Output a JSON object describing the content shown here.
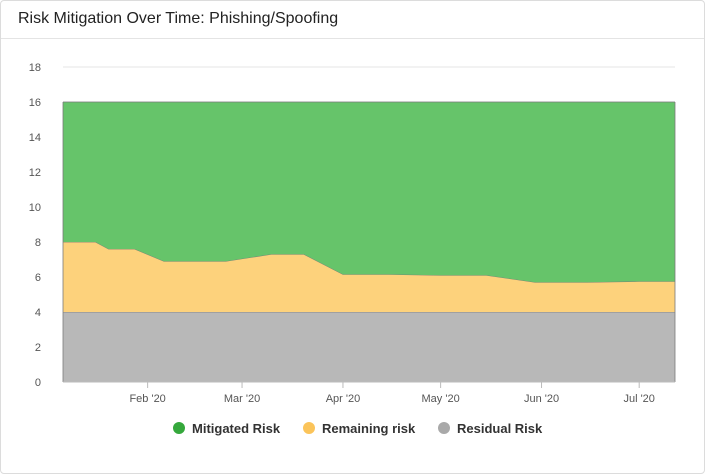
{
  "title": "Risk Mitigation Over Time: Phishing/Spoofing",
  "colors": {
    "mitigated": "#66c46a",
    "remaining": "#fdd27c",
    "residual": "#b8b8b8",
    "mitigated_legend": "#35a83c",
    "remaining_legend": "#fbc45a",
    "residual_legend": "#a9a9a9"
  },
  "chart_data": {
    "type": "area",
    "stacked": true,
    "grid": true,
    "legend_position": "bottom",
    "y_ticks": [
      "0",
      "2",
      "4",
      "6",
      "8",
      "10",
      "12",
      "14",
      "16",
      "18"
    ],
    "ylim": [
      0,
      18
    ],
    "x_tick_labels": [
      "Feb '20",
      "Mar '20",
      "Apr '20",
      "May '20",
      "Jun '20",
      "Jul '20"
    ],
    "x_tick_dates": [
      "2020-02-01",
      "2020-03-01",
      "2020-04-01",
      "2020-05-01",
      "2020-06-01",
      "2020-07-01"
    ],
    "xlim": [
      "2020-01-06",
      "2020-07-12"
    ],
    "x": [
      "2020-01-06",
      "2020-01-16",
      "2020-01-20",
      "2020-01-28",
      "2020-02-06",
      "2020-02-25",
      "2020-03-10",
      "2020-03-20",
      "2020-04-01",
      "2020-04-15",
      "2020-05-01",
      "2020-05-15",
      "2020-05-30",
      "2020-06-15",
      "2020-07-01",
      "2020-07-12"
    ],
    "series": [
      {
        "name": "Residual Risk",
        "values": [
          4,
          4,
          4,
          4,
          4,
          4,
          4,
          4,
          4,
          4,
          4,
          4,
          4,
          4,
          4,
          4
        ]
      },
      {
        "name": "Remaining risk",
        "values": [
          4.0,
          4.0,
          3.6,
          3.6,
          2.9,
          2.9,
          3.3,
          3.3,
          2.15,
          2.15,
          2.1,
          2.1,
          1.7,
          1.7,
          1.75,
          1.75
        ]
      },
      {
        "name": "Mitigated Risk",
        "values": [
          8.0,
          8.0,
          8.4,
          8.4,
          9.1,
          9.1,
          8.7,
          8.7,
          9.85,
          9.85,
          9.9,
          9.9,
          10.3,
          10.3,
          10.25,
          10.25
        ]
      }
    ],
    "legend": [
      "Mitigated Risk",
      "Remaining risk",
      "Residual Risk"
    ]
  }
}
